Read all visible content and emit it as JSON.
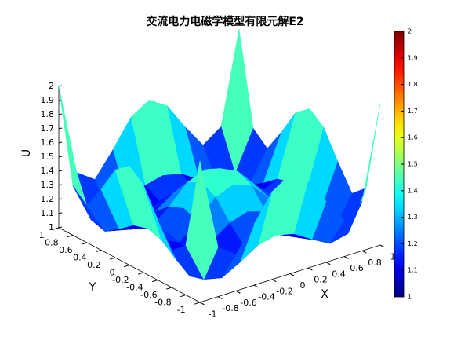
{
  "chart_data": {
    "type": "surface",
    "title": "交流电力电磁学模型有限元解E2",
    "xlabel": "X",
    "ylabel": "Y",
    "zlabel": "U",
    "x": [
      -1,
      -0.8,
      -0.6,
      -0.4,
      -0.2,
      0,
      0.2,
      0.4,
      0.6,
      0.8,
      1
    ],
    "y": [
      -1,
      -0.8,
      -0.6,
      -0.4,
      -0.2,
      0,
      0.2,
      0.4,
      0.6,
      0.8,
      1
    ],
    "z": [
      [
        2.0,
        1.35,
        1.26,
        1.43,
        1.62,
        1.7,
        1.62,
        1.43,
        1.26,
        1.35,
        2.0
      ],
      [
        1.35,
        1.07,
        1.04,
        1.11,
        1.19,
        1.22,
        1.19,
        1.11,
        1.04,
        1.07,
        1.35
      ],
      [
        1.26,
        1.04,
        1.01,
        1.07,
        1.13,
        1.16,
        1.13,
        1.07,
        1.01,
        1.04,
        1.26
      ],
      [
        1.43,
        1.11,
        1.07,
        1.15,
        1.24,
        1.28,
        1.24,
        1.15,
        1.07,
        1.11,
        1.43
      ],
      [
        1.62,
        1.19,
        1.13,
        1.24,
        1.37,
        1.42,
        1.37,
        1.24,
        1.13,
        1.19,
        1.62
      ],
      [
        1.7,
        1.22,
        1.16,
        1.28,
        1.42,
        1.48,
        1.42,
        1.28,
        1.16,
        1.22,
        1.7
      ],
      [
        1.62,
        1.19,
        1.13,
        1.24,
        1.37,
        1.42,
        1.37,
        1.24,
        1.13,
        1.19,
        1.62
      ],
      [
        1.43,
        1.11,
        1.07,
        1.15,
        1.24,
        1.28,
        1.24,
        1.15,
        1.07,
        1.11,
        1.43
      ],
      [
        1.26,
        1.04,
        1.01,
        1.07,
        1.13,
        1.16,
        1.13,
        1.07,
        1.01,
        1.04,
        1.26
      ],
      [
        1.35,
        1.07,
        1.04,
        1.11,
        1.19,
        1.22,
        1.19,
        1.11,
        1.04,
        1.07,
        1.35
      ],
      [
        2.0,
        1.35,
        1.26,
        1.43,
        1.62,
        1.7,
        1.62,
        1.43,
        1.26,
        1.35,
        2.0
      ]
    ],
    "xlim": [
      -1,
      1
    ],
    "ylim": [
      -1,
      1
    ],
    "zlim": [
      1,
      2
    ],
    "xticks": [
      -1,
      -0.8,
      -0.6,
      -0.4,
      -0.2,
      0,
      0.2,
      0.4,
      0.6,
      0.8,
      1
    ],
    "yticks": [
      -1,
      -0.8,
      -0.6,
      -0.4,
      -0.2,
      0,
      0.2,
      0.4,
      0.6,
      0.8,
      1
    ],
    "zticks": [
      1,
      1.1,
      1.2,
      1.3,
      1.4,
      1.5,
      1.6,
      1.7,
      1.8,
      1.9,
      2
    ],
    "colormap": "jet",
    "clim": [
      1,
      2
    ],
    "cticks": [
      1,
      1.1,
      1.2,
      1.3,
      1.4,
      1.5,
      1.6,
      1.7,
      1.8,
      1.9,
      2
    ]
  }
}
